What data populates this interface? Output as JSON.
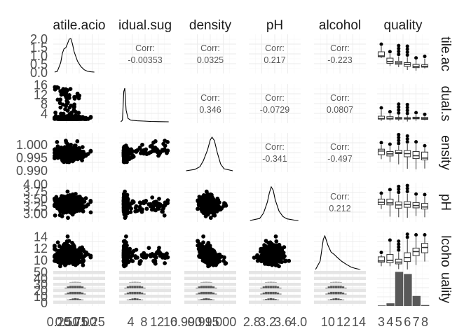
{
  "chart_data": {
    "type": "pairs",
    "columns": [
      "atile.acio",
      "idual.sug",
      "density",
      "pH",
      "alcohol",
      "quality"
    ],
    "row_labels": [
      "tile.ac",
      "dual.s",
      "ensity",
      "pH",
      "lcoho",
      "uality"
    ],
    "correlation_label": "Corr:",
    "correlations": [
      {
        "row": 0,
        "col": 1,
        "value": "-0.00353"
      },
      {
        "row": 0,
        "col": 2,
        "value": "0.0325"
      },
      {
        "row": 0,
        "col": 3,
        "value": "0.217"
      },
      {
        "row": 0,
        "col": 4,
        "value": "-0.223"
      },
      {
        "row": 1,
        "col": 2,
        "value": "0.346"
      },
      {
        "row": 1,
        "col": 3,
        "value": "-0.0729"
      },
      {
        "row": 1,
        "col": 4,
        "value": "0.0807"
      },
      {
        "row": 2,
        "col": 3,
        "value": "-0.341"
      },
      {
        "row": 2,
        "col": 4,
        "value": "-0.497"
      },
      {
        "row": 3,
        "col": 4,
        "value": "0.212"
      }
    ],
    "x_ticks": [
      [
        "0.25",
        "0.50",
        "0.75",
        "1.00",
        "1.25"
      ],
      [
        "4",
        "8",
        "12",
        "16"
      ],
      [
        "0.990",
        "0.995",
        "1.000"
      ],
      [
        "2.8",
        "3.2",
        "3.6",
        "4.0"
      ],
      [
        "10",
        "12",
        "14"
      ],
      [
        "3",
        "4",
        "5",
        "6",
        "7",
        "8"
      ]
    ],
    "y_ticks": [
      [
        "2.0",
        "1.5",
        "1.0",
        "0.5",
        "0.0"
      ],
      [
        "16",
        "12",
        "8",
        "4"
      ],
      [
        "1.000",
        "0.995",
        "0.990"
      ],
      [
        "4.00",
        "3.75",
        "3.50",
        "3.25",
        "3.00"
      ],
      [
        "14",
        "12",
        "10"
      ],
      [
        "50",
        "40",
        "30",
        "20",
        "10",
        "0"
      ]
    ],
    "density_curves": [
      [
        [
          0.12,
          0
        ],
        [
          0.2,
          0.05
        ],
        [
          0.3,
          0.6
        ],
        [
          0.35,
          1.2
        ],
        [
          0.4,
          1.5
        ],
        [
          0.45,
          1.55
        ],
        [
          0.5,
          1.8
        ],
        [
          0.55,
          2.1
        ],
        [
          0.6,
          2.15
        ],
        [
          0.65,
          1.8
        ],
        [
          0.7,
          1.3
        ],
        [
          0.8,
          0.7
        ],
        [
          0.9,
          0.35
        ],
        [
          1.0,
          0.15
        ],
        [
          1.1,
          0.05
        ],
        [
          1.2,
          0.02
        ],
        [
          1.3,
          0
        ]
      ],
      [
        [
          1.0,
          0
        ],
        [
          1.5,
          0.05
        ],
        [
          1.9,
          0.9
        ],
        [
          2.2,
          1.0
        ],
        [
          2.6,
          0.35
        ],
        [
          3.2,
          0.1
        ],
        [
          4,
          0.05
        ],
        [
          6,
          0.03
        ],
        [
          8,
          0.02
        ],
        [
          10,
          0.01
        ],
        [
          13,
          0.005
        ],
        [
          15.5,
          0
        ]
      ],
      [
        [
          0.99,
          0
        ],
        [
          0.9925,
          0.04
        ],
        [
          0.994,
          0.12
        ],
        [
          0.995,
          0.3
        ],
        [
          0.9962,
          0.62
        ],
        [
          0.997,
          0.92
        ],
        [
          0.9975,
          1.0
        ],
        [
          0.9982,
          0.9
        ],
        [
          0.999,
          0.55
        ],
        [
          1.0,
          0.2
        ],
        [
          1.001,
          0.06
        ],
        [
          1.0035,
          0
        ]
      ],
      [
        [
          2.75,
          0
        ],
        [
          3.0,
          0.06
        ],
        [
          3.1,
          0.22
        ],
        [
          3.2,
          0.55
        ],
        [
          3.25,
          0.82
        ],
        [
          3.3,
          1.0
        ],
        [
          3.35,
          0.9
        ],
        [
          3.4,
          0.62
        ],
        [
          3.5,
          0.28
        ],
        [
          3.6,
          0.12
        ],
        [
          3.7,
          0.05
        ],
        [
          3.9,
          0.01
        ],
        [
          4.0,
          0
        ]
      ],
      [
        [
          8.4,
          0
        ],
        [
          9.0,
          0.25
        ],
        [
          9.4,
          0.9
        ],
        [
          9.6,
          1.0
        ],
        [
          10.0,
          0.72
        ],
        [
          10.4,
          0.52
        ],
        [
          10.8,
          0.45
        ],
        [
          11.2,
          0.36
        ],
        [
          11.8,
          0.24
        ],
        [
          12.4,
          0.15
        ],
        [
          13.0,
          0.07
        ],
        [
          13.6,
          0.03
        ],
        [
          14.2,
          0
        ]
      ]
    ],
    "quality_counts": [
      {
        "quality": 3,
        "count": 10
      },
      {
        "quality": 4,
        "count": 53
      },
      {
        "quality": 5,
        "count": 681
      },
      {
        "quality": 6,
        "count": 638
      },
      {
        "quality": 7,
        "count": 199
      },
      {
        "quality": 8,
        "count": 18
      }
    ],
    "boxplots_by_quality": [
      [
        [
          0.88,
          0.95,
          1.0,
          1.25,
          1.58
        ],
        [
          0.4,
          0.56,
          0.67,
          0.87,
          1.13
        ],
        [
          0.33,
          0.5,
          0.58,
          0.68,
          0.97
        ],
        [
          0.16,
          0.38,
          0.49,
          0.6,
          0.93
        ],
        [
          0.12,
          0.3,
          0.37,
          0.49,
          0.76
        ],
        [
          0.26,
          0.33,
          0.37,
          0.47,
          0.85
        ]
      ],
      [
        [
          1.2,
          1.9,
          2.1,
          3.1,
          5.7
        ],
        [
          1.3,
          1.9,
          2.1,
          2.9,
          4.1
        ],
        [
          1.2,
          1.9,
          2.2,
          2.6,
          3.6
        ],
        [
          0.9,
          1.9,
          2.2,
          2.5,
          3.4
        ],
        [
          1.2,
          2.0,
          2.3,
          2.7,
          3.7
        ],
        [
          1.4,
          1.8,
          2.1,
          2.6,
          3.0
        ]
      ],
      [
        [
          0.9945,
          0.9962,
          0.9976,
          0.9983,
          1.0
        ],
        [
          0.9934,
          0.9957,
          0.9965,
          0.9974,
          0.9994
        ],
        [
          0.9925,
          0.9966,
          0.997,
          0.9979,
          0.9997
        ],
        [
          0.9908,
          0.9954,
          0.9966,
          0.9978,
          1.0003
        ],
        [
          0.9906,
          0.9947,
          0.9958,
          0.9974,
          1.0003
        ],
        [
          0.9909,
          0.9942,
          0.9949,
          0.9972,
          0.9988
        ]
      ],
      [
        [
          3.16,
          3.31,
          3.39,
          3.5,
          3.63
        ],
        [
          2.9,
          3.3,
          3.37,
          3.5,
          3.75
        ],
        [
          2.88,
          3.19,
          3.3,
          3.4,
          3.66
        ],
        [
          2.86,
          3.22,
          3.32,
          3.41,
          3.69
        ],
        [
          2.92,
          3.2,
          3.28,
          3.38,
          3.6
        ],
        [
          2.88,
          3.16,
          3.23,
          3.35,
          3.58
        ]
      ],
      [
        [
          9.0,
          9.7,
          9.9,
          10.6,
          11.0
        ],
        [
          9.0,
          9.6,
          10.0,
          11.0,
          13.1
        ],
        [
          8.5,
          9.4,
          9.7,
          10.2,
          11.4
        ],
        [
          8.4,
          9.8,
          10.5,
          11.3,
          13.6
        ],
        [
          9.2,
          10.8,
          11.5,
          12.1,
          14.0
        ],
        [
          9.8,
          11.3,
          12.2,
          12.9,
          14.0
        ]
      ]
    ]
  }
}
